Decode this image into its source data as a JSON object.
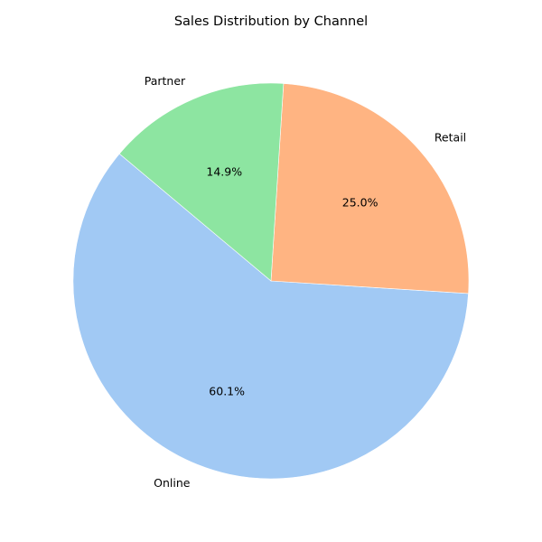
{
  "chart_data": {
    "type": "pie",
    "title": "Sales Distribution by Channel",
    "slices": [
      {
        "label": "Online",
        "value": 60.1,
        "pct_label": "60.1%",
        "color": "#a1c9f4"
      },
      {
        "label": "Retail",
        "value": 25.0,
        "pct_label": "25.0%",
        "color": "#ffb482"
      },
      {
        "label": "Partner",
        "value": 14.9,
        "pct_label": "14.9%",
        "color": "#8de5a1"
      }
    ],
    "start_angle_deg": 140,
    "direction": "counterclockwise",
    "legend": "none"
  }
}
